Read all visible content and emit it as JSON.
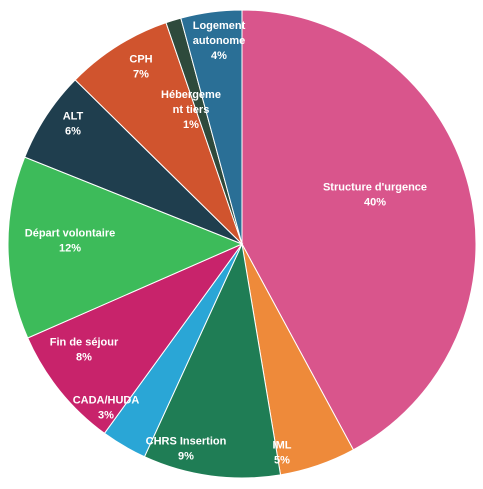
{
  "chart_data": {
    "type": "pie",
    "title": "",
    "slices": [
      {
        "label": "Structure d'urgence",
        "value_label": "40%",
        "value": 40,
        "color": "#d9558c",
        "label_lines": [
          "Structure d'urgence"
        ]
      },
      {
        "label": "IML",
        "value_label": "5%",
        "value": 5,
        "color": "#ee8a3a",
        "label_lines": [
          "IML"
        ]
      },
      {
        "label": "CHRS Insertion",
        "value_label": "9%",
        "value": 9,
        "color": "#1f7d55",
        "label_lines": [
          "CHRS Insertion"
        ]
      },
      {
        "label": "CADA/HUDA",
        "value_label": "3%",
        "value": 3,
        "color": "#2aa6d6",
        "label_lines": [
          "CADA/HUDA"
        ]
      },
      {
        "label": "Fin de séjour",
        "value_label": "8%",
        "value": 8,
        "color": "#c8236b",
        "label_lines": [
          "Fin de séjour"
        ]
      },
      {
        "label": "Départ volontaire",
        "value_label": "12%",
        "value": 12,
        "color": "#3dbb5a",
        "label_lines": [
          "Départ volontaire"
        ]
      },
      {
        "label": "ALT",
        "value_label": "6%",
        "value": 6,
        "color": "#1f3e4e",
        "label_lines": [
          "ALT"
        ]
      },
      {
        "label": "CPH",
        "value_label": "7%",
        "value": 7,
        "color": "#d0542e",
        "label_lines": [
          "CPH"
        ]
      },
      {
        "label": "Hébergement tiers",
        "value_label": "1%",
        "value": 1,
        "color": "#2e4a3c",
        "label_lines": [
          "Hébergeme",
          "nt tiers"
        ]
      },
      {
        "label": "Logement autonome",
        "value_label": "4%",
        "value": 4,
        "color": "#2a6f96",
        "label_lines": [
          "Logement",
          "autonome"
        ]
      }
    ]
  }
}
